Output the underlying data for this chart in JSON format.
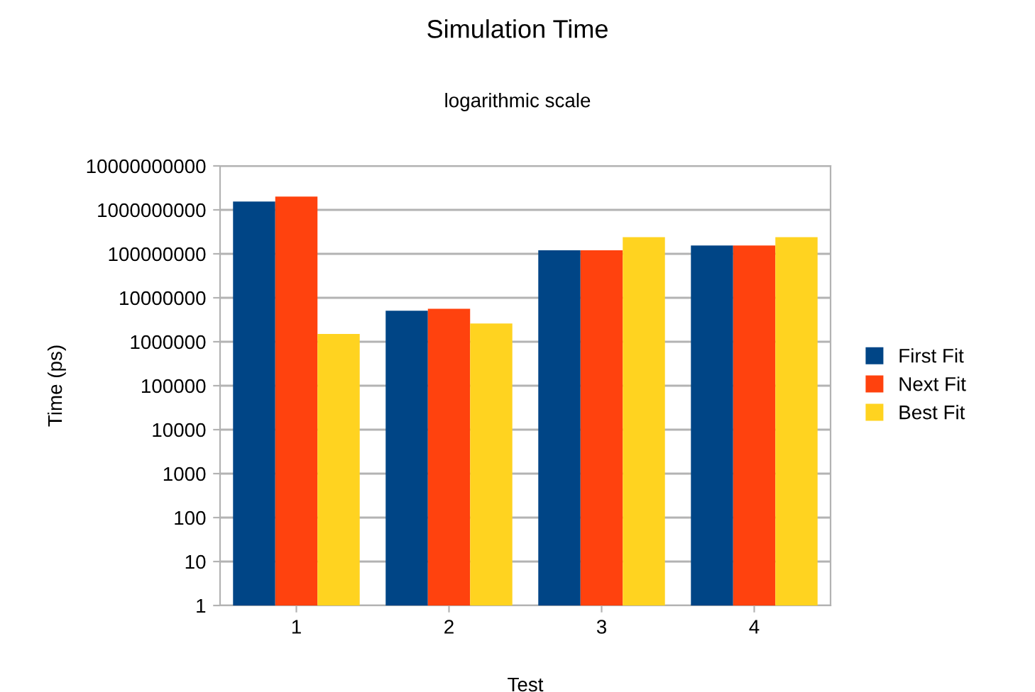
{
  "chart_data": {
    "type": "bar",
    "title": "Simulation Time",
    "subtitle": "logarithmic scale",
    "xlabel": "Test",
    "ylabel": "Time (ps)",
    "categories": [
      "1",
      "2",
      "3",
      "4"
    ],
    "series": [
      {
        "name": "First Fit",
        "color": "#004586",
        "values": [
          1550000000,
          5100000,
          120000000,
          155000000
        ]
      },
      {
        "name": "Next Fit",
        "color": "#ff420e",
        "values": [
          2000000000,
          5600000,
          120000000,
          155000000
        ]
      },
      {
        "name": "Best Fit",
        "color": "#ffd320",
        "values": [
          1500000,
          2600000,
          240000000,
          240000000
        ]
      }
    ],
    "log": "y",
    "ylim": [
      1,
      10000000000
    ],
    "yticks": [
      1,
      10,
      100,
      1000,
      10000,
      100000,
      1000000,
      10000000,
      100000000,
      1000000000,
      10000000000
    ],
    "grid": "y",
    "legend": "right"
  }
}
